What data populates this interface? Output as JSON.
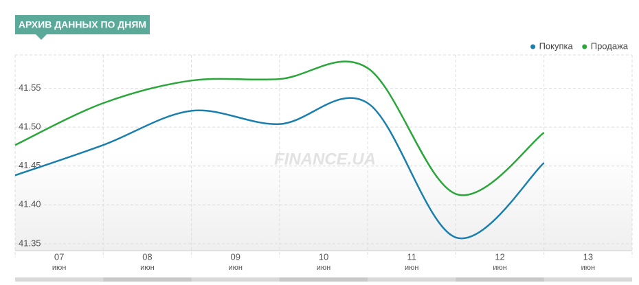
{
  "header": "АРХИВ ДАННЫХ ПО ДНЯМ",
  "chart_data": {
    "type": "line",
    "watermark": "FINANCE.UA",
    "categories": [
      "07",
      "08",
      "09",
      "10",
      "11",
      "12",
      "13"
    ],
    "category_months": [
      "июн",
      "июн",
      "июн",
      "июн",
      "июн",
      "июн",
      "июн"
    ],
    "series": [
      {
        "name": "Покупка",
        "color": "#1a7fad",
        "values": [
          41.438,
          41.477,
          41.521,
          41.504,
          41.531,
          41.358,
          41.454
        ]
      },
      {
        "name": "Продажа",
        "color": "#2aa63a",
        "values": [
          41.477,
          41.531,
          41.56,
          41.562,
          41.576,
          41.414,
          41.493
        ]
      }
    ],
    "ylim": [
      41.341,
      41.593
    ],
    "yticks": [
      41.35,
      {
        "value": 41.4,
        "label": "41.40"
      },
      41.45,
      {
        "value": 41.5,
        "label": "41.50"
      },
      41.55
    ],
    "grid": true,
    "legend": "top-right"
  }
}
